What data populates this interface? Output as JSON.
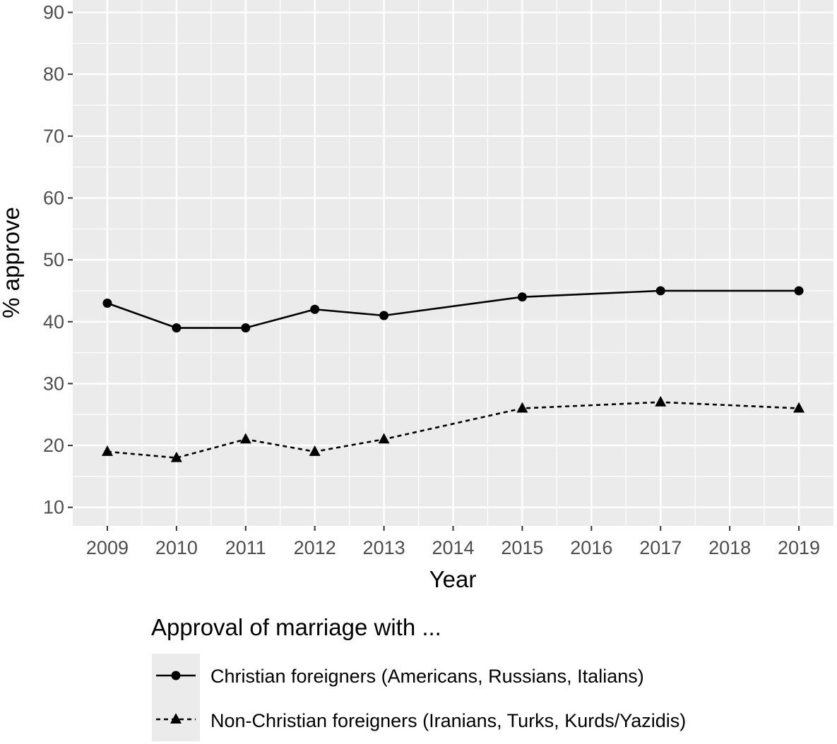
{
  "chart_data": {
    "type": "line",
    "title": "",
    "xlabel": "Year",
    "ylabel": "% approve",
    "xlim": [
      2008.5,
      2019.5
    ],
    "ylim": [
      7,
      92
    ],
    "x_ticks": [
      2009,
      2010,
      2011,
      2012,
      2013,
      2014,
      2015,
      2016,
      2017,
      2018,
      2019
    ],
    "y_ticks": [
      10,
      20,
      30,
      40,
      50,
      60,
      70,
      80,
      90
    ],
    "grid": true,
    "legend_title": "Approval of marriage with ...",
    "legend_position": "bottom",
    "series": [
      {
        "name": "Christian foreigners (Americans, Russians, Italians)",
        "line": "solid",
        "marker": "circle",
        "color": "#000000",
        "x": [
          2009,
          2010,
          2011,
          2012,
          2013,
          2015,
          2017,
          2019
        ],
        "y": [
          43,
          39,
          39,
          42,
          41,
          44,
          45,
          45
        ]
      },
      {
        "name": "Non-Christian foreigners (Iranians, Turks, Kurds/Yazidis)",
        "line": "dashed",
        "marker": "triangle",
        "color": "#000000",
        "x": [
          2009,
          2010,
          2011,
          2012,
          2013,
          2015,
          2017,
          2019
        ],
        "y": [
          19,
          18,
          21,
          19,
          21,
          26,
          27,
          26
        ]
      }
    ],
    "colors": {
      "panel_background": "#ebebeb",
      "gridline": "#ffffff",
      "tick_text": "#4d4d4d",
      "legend_key_background": "#ebebeb"
    }
  }
}
